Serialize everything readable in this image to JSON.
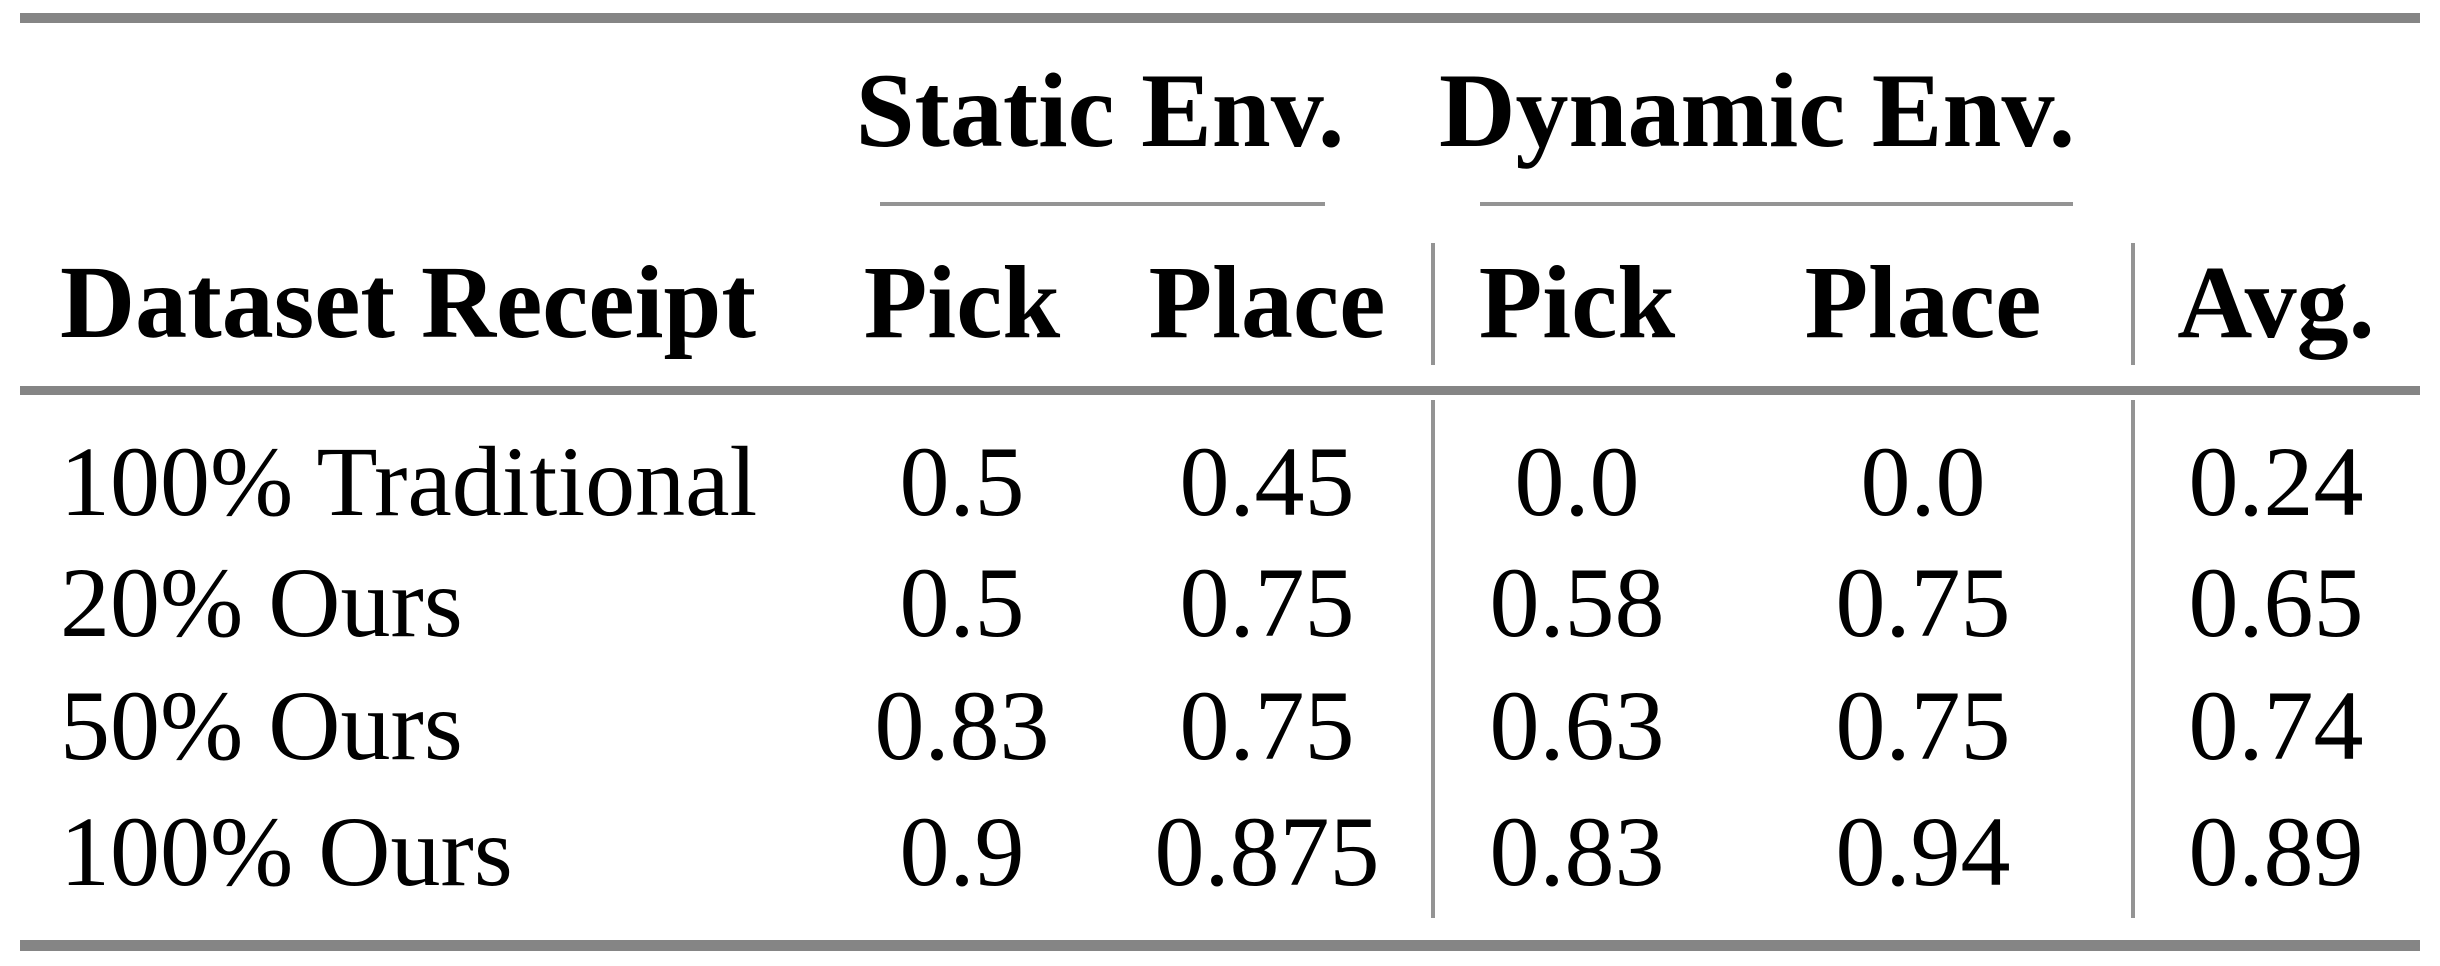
{
  "table": {
    "col_groups": {
      "static": "Static Env.",
      "dynamic": "Dynamic Env."
    },
    "headers": {
      "row_label": "Dataset Receipt",
      "static_pick": "Pick",
      "static_place": "Place",
      "dynamic_pick": "Pick",
      "dynamic_place": "Place",
      "avg": "Avg."
    },
    "rows": [
      {
        "label": "100% Traditional",
        "static_pick": "0.5",
        "static_place": "0.45",
        "dynamic_pick": "0.0",
        "dynamic_place": "0.0",
        "avg": "0.24"
      },
      {
        "label": "20% Ours",
        "static_pick": "0.5",
        "static_place": "0.75",
        "dynamic_pick": "0.58",
        "dynamic_place": "0.75",
        "avg": "0.65"
      },
      {
        "label": "50% Ours",
        "static_pick": "0.83",
        "static_place": "0.75",
        "dynamic_pick": "0.63",
        "dynamic_place": "0.75",
        "avg": "0.74"
      },
      {
        "label": "100% Ours",
        "static_pick": "0.9",
        "static_place": "0.875",
        "dynamic_pick": "0.83",
        "dynamic_place": "0.94",
        "avg": "0.89"
      }
    ],
    "colors": {
      "rule_heavy": "#858585",
      "rule_light": "#949494",
      "text": "#000000"
    }
  },
  "chart_data": {
    "type": "table",
    "column_groups": [
      "",
      "Static Env.",
      "Static Env.",
      "Dynamic Env.",
      "Dynamic Env.",
      ""
    ],
    "columns": [
      "Dataset Receipt",
      "Pick",
      "Place",
      "Pick",
      "Place",
      "Avg."
    ],
    "rows": [
      [
        "100% Traditional",
        0.5,
        0.45,
        0.0,
        0.0,
        0.24
      ],
      [
        "20% Ours",
        0.5,
        0.75,
        0.58,
        0.75,
        0.65
      ],
      [
        "50% Ours",
        0.83,
        0.75,
        0.63,
        0.75,
        0.74
      ],
      [
        "100% Ours",
        0.9,
        0.875,
        0.83,
        0.94,
        0.89
      ]
    ]
  }
}
